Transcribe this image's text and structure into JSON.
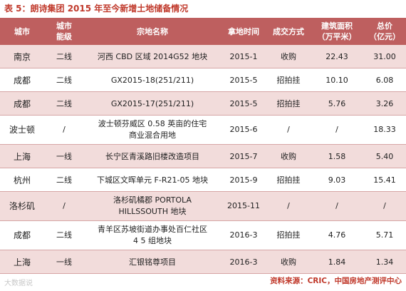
{
  "title": "表 5：朗诗集团 2015 年至今新增土地储备情况",
  "columns": [
    "城市",
    "城市\n能级",
    "宗地名称",
    "拿地时间",
    "成交方式",
    "建筑面积\n（万平米）",
    "总价\n（亿元）"
  ],
  "rows": [
    {
      "city": "南京",
      "tier": "二线",
      "name": "河西 CBD 区域 2014G52 地块",
      "date": "2015-1",
      "method": "收购",
      "area": "22.43",
      "price": "31.00"
    },
    {
      "city": "成都",
      "tier": "二线",
      "name": "GX2015-18(251/211)",
      "date": "2015-5",
      "method": "招拍挂",
      "area": "10.10",
      "price": "6.08"
    },
    {
      "city": "成都",
      "tier": "二线",
      "name": "GX2015-17(251/211)",
      "date": "2015-5",
      "method": "招拍挂",
      "area": "5.76",
      "price": "3.26"
    },
    {
      "city": "波士顿",
      "tier": "/",
      "name": "波士顿芬威区 0.58 英亩的住宅\n商业混合用地",
      "date": "2015-6",
      "method": "/",
      "area": "/",
      "price": "18.33"
    },
    {
      "city": "上海",
      "tier": "一线",
      "name": "长宁区青溪路旧楼改造项目",
      "date": "2015-7",
      "method": "收购",
      "area": "1.58",
      "price": "5.40"
    },
    {
      "city": "杭州",
      "tier": "二线",
      "name": "下城区文晖单元 F-R21-05 地块",
      "date": "2015-9",
      "method": "招拍挂",
      "area": "9.03",
      "price": "15.41"
    },
    {
      "city": "洛杉矶",
      "tier": "/",
      "name": "洛杉矶橘郡 PORTOLA\nHILLSSOUTH 地块",
      "date": "2015-11",
      "method": "/",
      "area": "/",
      "price": "/"
    },
    {
      "city": "成都",
      "tier": "二线",
      "name": "青羊区苏坡街道办事处百仁社区\n4 5 组地块",
      "date": "2016-3",
      "method": "招拍挂",
      "area": "4.76",
      "price": "5.71"
    },
    {
      "city": "上海",
      "tier": "一线",
      "name": "汇银铭尊项目",
      "date": "2016-3",
      "method": "收购",
      "area": "1.84",
      "price": "1.34"
    }
  ],
  "footer_watermark": "大数据说",
  "source": "资料来源：CRIC，中国房地产测评中心",
  "colors": {
    "header_bg": "#be5f5f",
    "stripe": "#f2dcdb",
    "title": "#c0392b"
  }
}
